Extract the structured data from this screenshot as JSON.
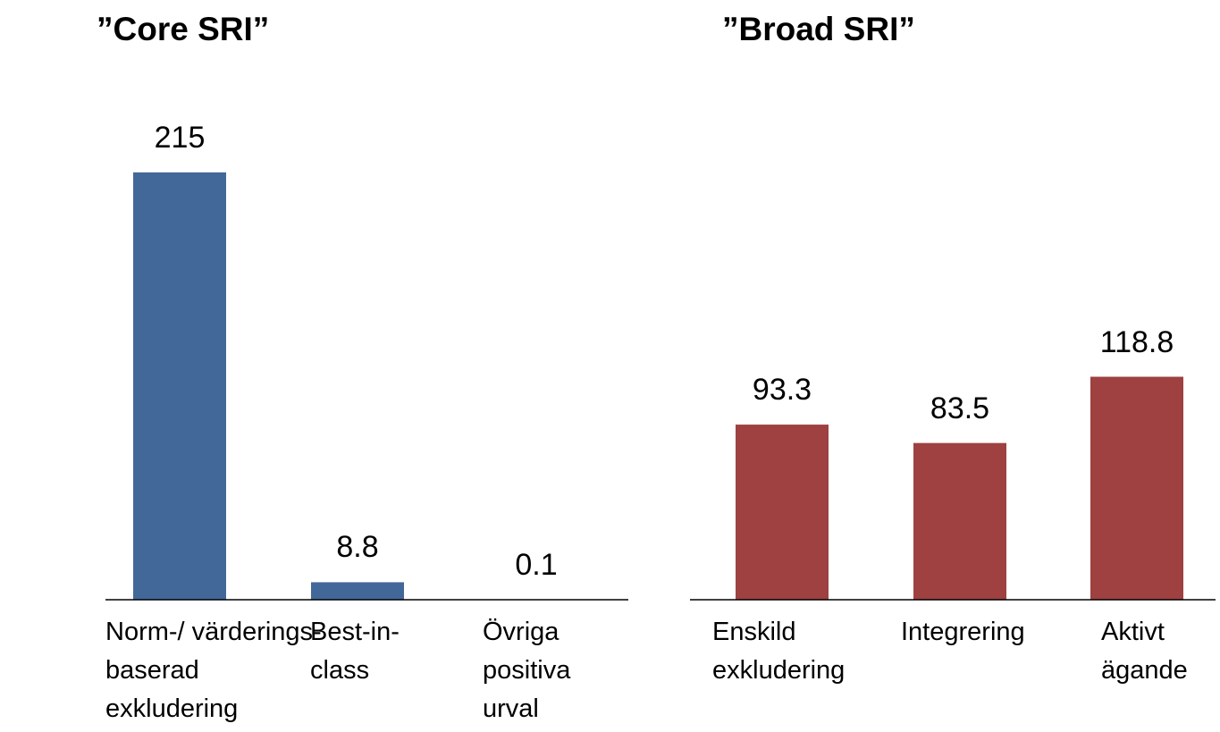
{
  "chart_data": [
    {
      "type": "bar",
      "title": "”Core SRI”",
      "categories": [
        "Norm-/ värderings-\nbaserad\nexkludering",
        "Best-in-\nclass",
        "Övriga\npositiva\nurval"
      ],
      "values": [
        215,
        8.8,
        0.1
      ],
      "color": "#426899",
      "ylim": [
        0,
        250
      ]
    },
    {
      "type": "bar",
      "title": "”Broad SRI”",
      "categories": [
        "Enskild\nexkludering",
        "Integrering",
        "Aktivt\nägande"
      ],
      "values": [
        93.3,
        83.5,
        118.8
      ],
      "color": "#9e4140",
      "ylim": [
        0,
        250
      ]
    }
  ]
}
